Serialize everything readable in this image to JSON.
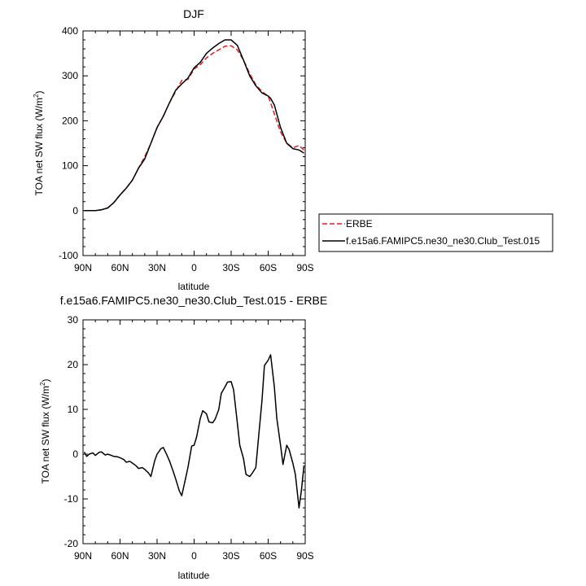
{
  "chart_data": [
    {
      "type": "line",
      "title": "DJF",
      "xlabel": "latitude",
      "ylabel": "TOA net SW flux (W/m²)",
      "ylabel_text": "TOA net SW flux (W/m",
      "ylabel_sup": "2",
      "ylabel_end": ")",
      "xlim": [
        90,
        -90
      ],
      "ylim": [
        -100,
        400
      ],
      "xtick_values": [
        90,
        60,
        30,
        0,
        -30,
        -60,
        -90
      ],
      "xtick_labels": [
        "90N",
        "60N",
        "30N",
        "0",
        "30S",
        "60S",
        "90S"
      ],
      "ytick_values": [
        -100,
        0,
        100,
        200,
        300,
        400
      ],
      "ytick_labels": [
        "-100",
        "0",
        "100",
        "200",
        "300",
        "400"
      ],
      "legend_position": "right",
      "legend_entries": [
        "ERBE",
        "f.e15a6.FAMIPC5.ne30_ne30.Club_Test.015"
      ],
      "series": [
        {
          "name": "ERBE",
          "color": "#e02020",
          "dash": "dashed",
          "x": [
            89,
            85,
            80,
            75,
            70,
            65,
            60,
            55,
            50,
            45,
            40,
            35,
            30,
            25,
            20,
            15,
            10,
            5,
            0,
            -5,
            -10,
            -15,
            -20,
            -25,
            -30,
            -35,
            -40,
            -45,
            -50,
            -55,
            -60,
            -62,
            -65,
            -70,
            -75,
            -80,
            -85,
            -89
          ],
          "y": [
            0,
            0,
            0,
            2,
            6,
            18,
            35,
            50,
            68,
            95,
            120,
            150,
            185,
            210,
            240,
            265,
            290,
            292,
            315,
            325,
            340,
            350,
            358,
            366,
            367,
            358,
            335,
            305,
            280,
            265,
            255,
            240,
            215,
            175,
            150,
            140,
            145,
            135
          ]
        },
        {
          "name": "f.e15a6.FAMIPC5.ne30_ne30.Club_Test.015",
          "color": "#000000",
          "dash": "solid",
          "x": [
            89,
            85,
            80,
            75,
            70,
            65,
            60,
            55,
            50,
            45,
            40,
            35,
            30,
            25,
            20,
            15,
            10,
            5,
            0,
            -5,
            -10,
            -15,
            -20,
            -25,
            -30,
            -35,
            -40,
            -45,
            -50,
            -55,
            -60,
            -62,
            -65,
            -70,
            -75,
            -80,
            -85,
            -89
          ],
          "y": [
            0,
            0,
            0,
            2,
            6,
            18,
            35,
            50,
            68,
            95,
            115,
            150,
            185,
            210,
            240,
            268,
            282,
            295,
            318,
            330,
            350,
            362,
            372,
            380,
            380,
            368,
            335,
            300,
            278,
            262,
            255,
            250,
            235,
            185,
            150,
            138,
            135,
            128
          ]
        }
      ]
    },
    {
      "type": "line",
      "title": "f.e15a6.FAMIPC5.ne30_ne30.Club_Test.015 - ERBE",
      "xlabel": "latitude",
      "ylabel": "TOA net SW flux (W/m²)",
      "ylabel_text": "TOA net SW flux (W/m",
      "ylabel_sup": "2",
      "ylabel_end": ")",
      "xlim": [
        90,
        -90
      ],
      "ylim": [
        -20,
        30
      ],
      "xtick_values": [
        90,
        60,
        30,
        0,
        -30,
        -60,
        -90
      ],
      "xtick_labels": [
        "90N",
        "60N",
        "30N",
        "0",
        "30S",
        "60S",
        "90S"
      ],
      "ytick_values": [
        -20,
        -10,
        0,
        10,
        20,
        30
      ],
      "ytick_labels": [
        "-20",
        "-10",
        "0",
        "10",
        "20",
        "30"
      ],
      "series": [
        {
          "color": "#000000",
          "dash": "solid",
          "x": [
            89,
            87,
            85,
            82,
            80,
            77,
            75,
            72,
            70,
            67,
            65,
            62,
            60,
            57,
            55,
            52,
            50,
            47,
            45,
            42,
            40,
            37,
            35,
            32,
            30,
            27,
            25,
            22,
            20,
            17,
            15,
            12,
            10,
            7,
            5,
            2,
            0,
            -2,
            -5,
            -7,
            -10,
            -12,
            -15,
            -17,
            -20,
            -22,
            -25,
            -27,
            -30,
            -32,
            -35,
            -37,
            -40,
            -42,
            -45,
            -47,
            -50,
            -52,
            -55,
            -57,
            -60,
            -62,
            -65,
            -67,
            -70,
            -72,
            -75,
            -77,
            -80,
            -82,
            -85,
            -87,
            -89
          ],
          "y": [
            0.5,
            -0.5,
            0,
            0.3,
            -0.3,
            0.4,
            0.5,
            -0.2,
            0,
            -0.3,
            -0.5,
            -0.6,
            -0.8,
            -1.2,
            -1.8,
            -1.6,
            -2,
            -2.6,
            -3.2,
            -3.0,
            -3.4,
            -4.2,
            -5,
            -1.5,
            0,
            1.2,
            1.5,
            -0.2,
            -1.5,
            -3.8,
            -5.5,
            -8.2,
            -9.3,
            -5.5,
            -3.0,
            1.8,
            2,
            3.8,
            8,
            9.7,
            9,
            7.2,
            7,
            7.8,
            10,
            13.6,
            15,
            16.1,
            16.2,
            14.4,
            7,
            2,
            -1,
            -4.5,
            -5,
            -4.3,
            -3,
            3.2,
            12,
            19.8,
            21,
            22.2,
            15,
            8,
            2,
            -2.3,
            2,
            1,
            -2,
            -4.5,
            -12,
            -8,
            -2.5
          ]
        }
      ]
    }
  ]
}
